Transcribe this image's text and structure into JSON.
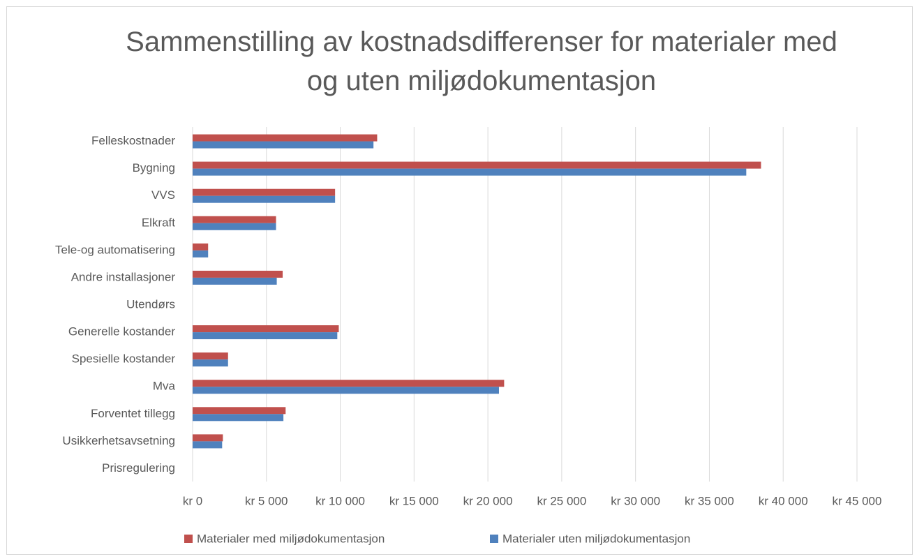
{
  "chart_data": {
    "type": "bar",
    "orientation": "horizontal",
    "title": "Sammenstilling av kostnadsdifferenser for materialer med og uten miljødokumentasjon",
    "categories": [
      "Felleskostnader",
      "Bygning",
      "VVS",
      "Elkraft",
      "Tele-og automatisering",
      "Andre installasjoner",
      "Utendørs",
      "Generelle kostander",
      "Spesielle kostander",
      "Mva",
      "Forventet tillegg",
      "Usikkerhetsavsetning",
      "Prisregulering"
    ],
    "series": [
      {
        "name": "Materialer med miljødokumentasjon",
        "color": "#c0504d",
        "values": [
          12500,
          38500,
          9650,
          5650,
          1050,
          6100,
          null,
          9900,
          2400,
          21100,
          6300,
          2050,
          null
        ]
      },
      {
        "name": "Materialer uten miljødokumentasjon",
        "color": "#4f81bd",
        "values": [
          12250,
          37500,
          9650,
          5650,
          1050,
          5700,
          null,
          9800,
          2400,
          20750,
          6150,
          2000,
          null
        ]
      }
    ],
    "xlim": [
      0,
      45000
    ],
    "xticks": [
      {
        "value": 0,
        "label": "kr 0"
      },
      {
        "value": 5000,
        "label": "kr 5 000"
      },
      {
        "value": 10000,
        "label": "kr 10 000"
      },
      {
        "value": 15000,
        "label": "kr 15 000"
      },
      {
        "value": 20000,
        "label": "kr 20 000"
      },
      {
        "value": 25000,
        "label": "kr 25 000"
      },
      {
        "value": 30000,
        "label": "kr 30 000"
      },
      {
        "value": 35000,
        "label": "kr 35 000"
      },
      {
        "value": 40000,
        "label": "kr 40 000"
      },
      {
        "value": 45000,
        "label": "kr 45 000"
      }
    ],
    "grid": true,
    "legend": "bottom"
  }
}
